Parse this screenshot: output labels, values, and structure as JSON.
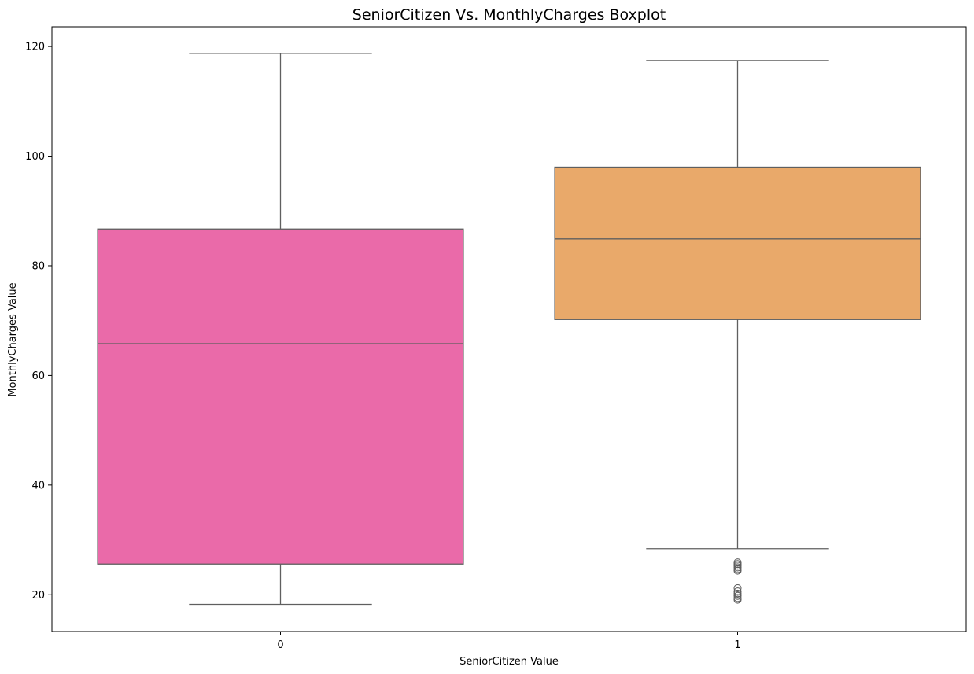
{
  "chart_data": {
    "type": "box",
    "title": "SeniorCitizen Vs. MonthlyCharges Boxplot",
    "xlabel": "SeniorCitizen Value",
    "ylabel": "MonthlyCharges Value",
    "ylim": [
      13.3,
      123.6
    ],
    "yticks": [
      20,
      40,
      60,
      80,
      100,
      120
    ],
    "categories": [
      "0",
      "1"
    ],
    "boxes": [
      {
        "category": "0",
        "whisker_low": 18.25,
        "q1": 25.6,
        "median": 65.8,
        "q3": 86.7,
        "whisker_high": 118.75,
        "outliers": [],
        "color": "#ea6aa9"
      },
      {
        "category": "1",
        "whisker_low": 28.4,
        "q1": 70.2,
        "median": 84.9,
        "q3": 98.0,
        "whisker_high": 117.45,
        "outliers": [
          25.9,
          25.6,
          25.3,
          25.0,
          24.7,
          24.4,
          21.2,
          20.6,
          20.2,
          19.8,
          19.4,
          19.1
        ],
        "color": "#e9a96a"
      }
    ],
    "grid": false,
    "legend": "none"
  },
  "colors": {
    "line": "#5f5f5f",
    "axis": "#000000"
  }
}
